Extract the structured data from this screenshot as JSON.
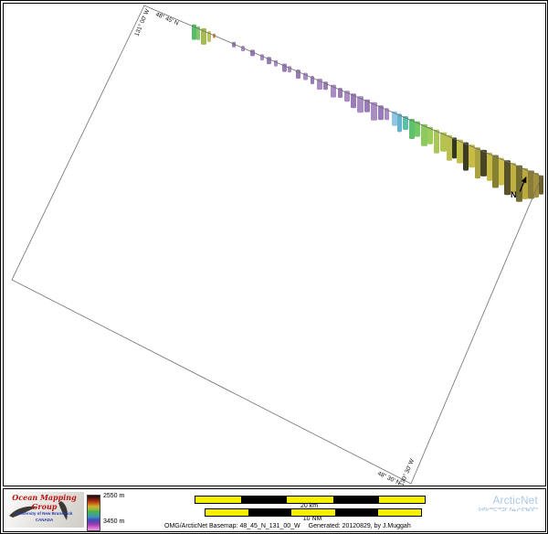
{
  "map": {
    "corner_labels": {
      "top_lat": "48° 45' N",
      "left_lon": "131° 00' W",
      "bottom_lat": "48° 30' N",
      "right_lon": "130° 30' W"
    },
    "north_label": "N",
    "boundary_color": "#6e6e6e",
    "swaths": [
      [
        206,
        5,
        17,
        "#57bd6e"
      ],
      [
        211,
        4,
        15,
        "#86c468"
      ],
      [
        216,
        6,
        18,
        "#a3ba57"
      ],
      [
        223,
        4,
        12,
        "#bcc462"
      ],
      [
        229,
        3,
        5,
        "#c98b4a"
      ],
      [
        250,
        4,
        6,
        "#997bb7"
      ],
      [
        260,
        4,
        6,
        "#a98cc4"
      ],
      [
        270,
        5,
        7,
        "#997bb7"
      ],
      [
        281,
        4,
        7,
        "#a98cc4"
      ],
      [
        288,
        5,
        8,
        "#997bb7"
      ],
      [
        296,
        4,
        7,
        "#a98cc4"
      ],
      [
        305,
        5,
        9,
        "#997bb7"
      ],
      [
        311,
        4,
        7,
        "#a98cc4"
      ],
      [
        320,
        5,
        10,
        "#997bb7"
      ],
      [
        328,
        5,
        8,
        "#a98cc4"
      ],
      [
        336,
        4,
        9,
        "#997bb7"
      ],
      [
        343,
        6,
        12,
        "#a98cc4"
      ],
      [
        350,
        5,
        9,
        "#997bb7"
      ],
      [
        358,
        6,
        14,
        "#a98cc4"
      ],
      [
        366,
        5,
        11,
        "#997bb7"
      ],
      [
        373,
        6,
        12,
        "#a98cc4"
      ],
      [
        380,
        6,
        16,
        "#997bb7"
      ],
      [
        387,
        7,
        18,
        "#a98cc4"
      ],
      [
        395,
        6,
        14,
        "#997bb7"
      ],
      [
        402,
        7,
        20,
        "#a98cc4"
      ],
      [
        410,
        6,
        16,
        "#997bb7"
      ],
      [
        417,
        5,
        13,
        "#a98cc4"
      ],
      [
        425,
        6,
        16,
        "#8fc7e2"
      ],
      [
        431,
        5,
        20,
        "#64b4cf"
      ],
      [
        437,
        6,
        15,
        "#58bfa9"
      ],
      [
        444,
        6,
        22,
        "#5fc06e"
      ],
      [
        450,
        6,
        17,
        "#74c765"
      ],
      [
        457,
        7,
        24,
        "#8cc95e"
      ],
      [
        464,
        6,
        19,
        "#9ccd59"
      ],
      [
        471,
        6,
        26,
        "#a8c754"
      ],
      [
        478,
        7,
        21,
        "#b4c351"
      ],
      [
        485,
        6,
        28,
        "#bcbf4e"
      ],
      [
        491,
        5,
        23,
        "#33391f"
      ],
      [
        496,
        7,
        26,
        "#c4c14b"
      ],
      [
        503,
        6,
        31,
        "#3c3d22"
      ],
      [
        509,
        7,
        25,
        "#c8bc47"
      ],
      [
        516,
        6,
        34,
        "#aaa240"
      ],
      [
        522,
        7,
        29,
        "#4a4426"
      ],
      [
        529,
        6,
        31,
        "#c7ba45"
      ],
      [
        535,
        7,
        36,
        "#868033"
      ],
      [
        542,
        6,
        30,
        "#cec04a"
      ],
      [
        548,
        7,
        38,
        "#59512a"
      ],
      [
        555,
        6,
        33,
        "#bfb041"
      ],
      [
        561,
        7,
        40,
        "#746b31"
      ],
      [
        568,
        6,
        34,
        "#b9a93e"
      ],
      [
        574,
        7,
        31,
        "#897c36"
      ],
      [
        580,
        6,
        27,
        "#a2913a"
      ],
      [
        586,
        5,
        21,
        "#6b5f2e"
      ]
    ]
  },
  "legend": {
    "top_label": "2550 m",
    "bottom_label": "3450 m",
    "colorbar_colors": [
      "#1d0d08",
      "#5e150d",
      "#a62a12",
      "#c8641c",
      "#cfae2e",
      "#9dbd3a",
      "#4fae46",
      "#3aa88c",
      "#3f8fc0",
      "#3f51b5",
      "#6a3fb5",
      "#a93fb0",
      "#d66fd0",
      "#e9a0e0"
    ]
  },
  "scalebars": {
    "km": {
      "label": "20 km",
      "segments": 5
    },
    "nm": {
      "label": "10 NM",
      "segments": 5
    },
    "segment_colors": [
      "#f7ef00",
      "#000000"
    ]
  },
  "footer": {
    "caption_basemap": "OMG/ArcticNet Basemap: 48_45_N_131_00_W",
    "caption_generated": "Generated: 20120829, by J.Muggah"
  },
  "omg_logo": {
    "title": "Ocean Mapping Group",
    "org": "University of New Brunswick",
    "country": "CANADA",
    "title_color": "#bb1111",
    "org_color": "#2238b0"
  },
  "arcticnet": {
    "name": "ArcticNet",
    "syllabics": "ᐅᑭᐅᖅᑕᖅᑐᒥ ᐱᓇᓱᐊᖃᑎᒌᑦ",
    "color": "#a9c7e8",
    "syllabics_color": "#8fb3d9"
  }
}
